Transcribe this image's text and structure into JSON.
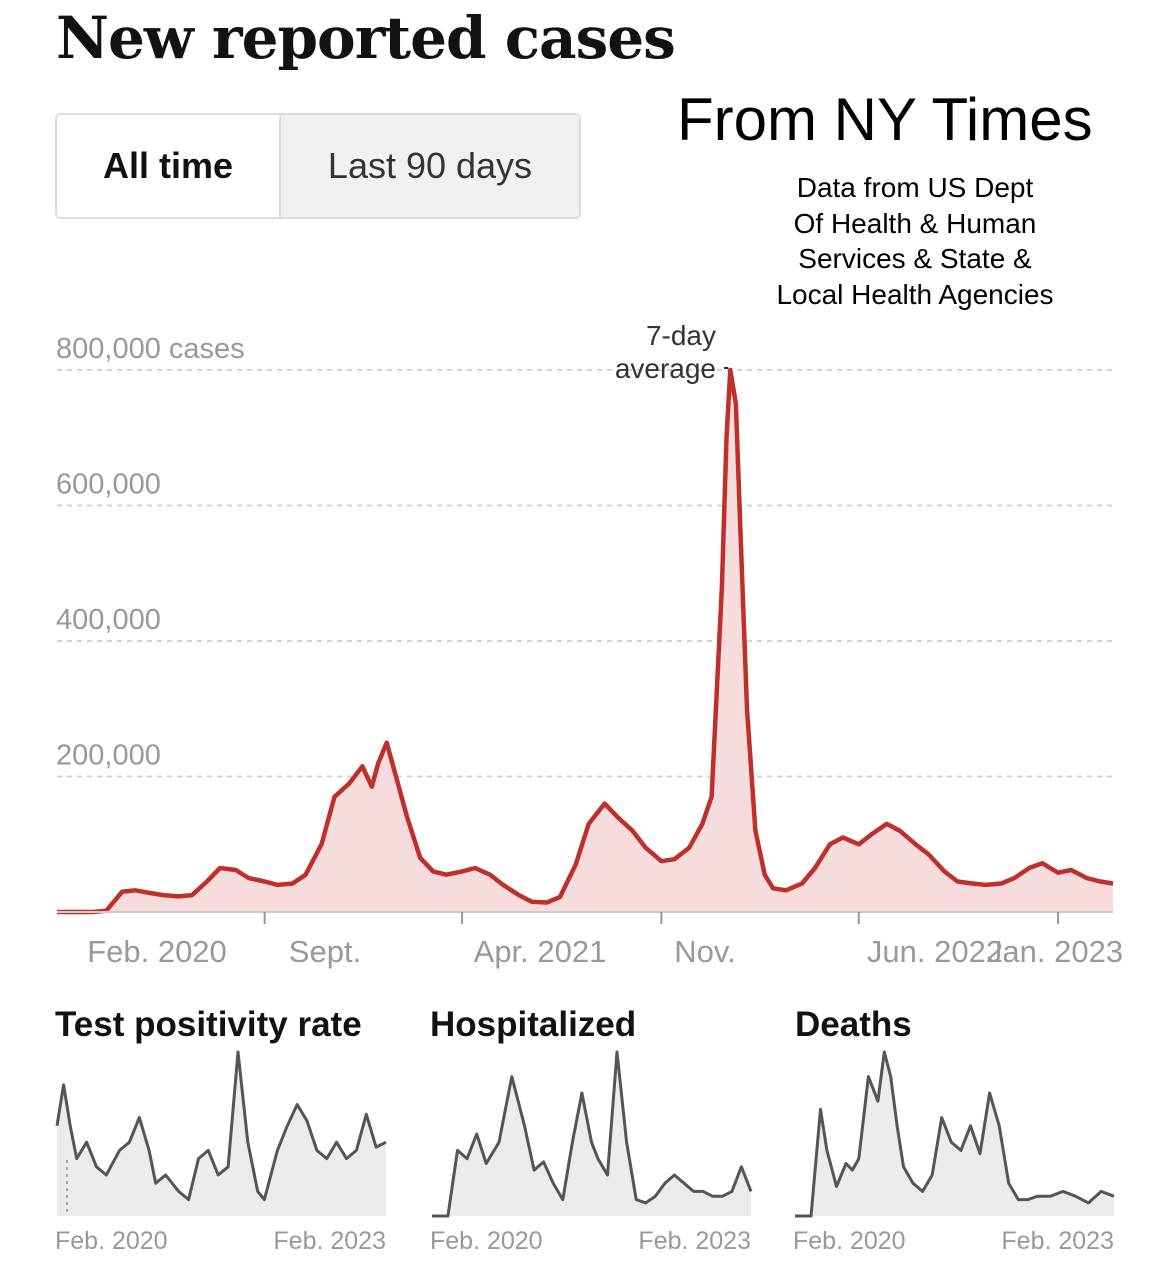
{
  "header": {
    "title": "New reported cases",
    "source_title": "From NY Times",
    "source_note": [
      "Data from US Dept",
      "Of Health & Human",
      "Services & State &",
      "Local Health Agencies"
    ]
  },
  "toggle": {
    "options": [
      {
        "label": "All time",
        "active": true
      },
      {
        "label": "Last 90 days",
        "active": false
      }
    ]
  },
  "colors": {
    "line": "#c0302b",
    "area": "#f6dcdc",
    "small_line": "#555555",
    "small_area": "#ececec",
    "grid": "#d4d4d4",
    "tick_text": "#999999"
  },
  "chart_data": [
    {
      "type": "area",
      "title": "New reported cases",
      "ylabel": "",
      "ylim": [
        0,
        800000
      ],
      "y_ticks": [
        {
          "value": 800000,
          "label": "800,000 cases"
        },
        {
          "value": 600000,
          "label": "600,000"
        },
        {
          "value": 400000,
          "label": "400,000"
        },
        {
          "value": 200000,
          "label": "200,000"
        }
      ],
      "x_ticks": [
        "Feb. 2020",
        "Sept.",
        "Apr. 2021",
        "Nov.",
        "Jun. 2022",
        "Jan. 2023"
      ],
      "grid": true,
      "annotation": {
        "text": [
          "7-day",
          "average"
        ],
        "date": "2022-01-14"
      },
      "series": [
        {
          "name": "",
          "x": [
            "2020-01-22",
            "2020-03-01",
            "2020-03-15",
            "2020-04-01",
            "2020-04-15",
            "2020-05-01",
            "2020-05-15",
            "2020-06-01",
            "2020-06-15",
            "2020-07-01",
            "2020-07-15",
            "2020-08-01",
            "2020-08-15",
            "2020-09-01",
            "2020-09-15",
            "2020-10-01",
            "2020-10-15",
            "2020-11-01",
            "2020-11-15",
            "2020-12-01",
            "2020-12-15",
            "2020-12-25",
            "2021-01-01",
            "2021-01-10",
            "2021-01-20",
            "2021-02-01",
            "2021-02-15",
            "2021-03-01",
            "2021-03-15",
            "2021-04-01",
            "2021-04-15",
            "2021-05-01",
            "2021-05-15",
            "2021-06-01",
            "2021-06-15",
            "2021-07-01",
            "2021-07-15",
            "2021-08-01",
            "2021-08-15",
            "2021-09-01",
            "2021-09-15",
            "2021-10-01",
            "2021-10-15",
            "2021-11-01",
            "2021-11-15",
            "2021-12-01",
            "2021-12-15",
            "2021-12-25",
            "2022-01-05",
            "2022-01-10",
            "2022-01-14",
            "2022-01-20",
            "2022-01-25",
            "2022-02-01",
            "2022-02-10",
            "2022-02-20",
            "2022-03-01",
            "2022-03-15",
            "2022-04-01",
            "2022-04-15",
            "2022-05-01",
            "2022-05-15",
            "2022-06-01",
            "2022-06-15",
            "2022-07-01",
            "2022-07-15",
            "2022-08-01",
            "2022-08-15",
            "2022-09-01",
            "2022-09-15",
            "2022-10-01",
            "2022-10-15",
            "2022-11-01",
            "2022-11-15",
            "2022-12-01",
            "2022-12-15",
            "2023-01-01",
            "2023-01-15",
            "2023-02-01",
            "2023-02-15",
            "2023-03-01"
          ],
          "values": [
            0,
            0,
            2000,
            30000,
            32000,
            28000,
            25000,
            23000,
            25000,
            45000,
            65000,
            62000,
            50000,
            45000,
            40000,
            42000,
            55000,
            100000,
            170000,
            190000,
            215000,
            185000,
            220000,
            250000,
            200000,
            140000,
            80000,
            60000,
            55000,
            60000,
            65000,
            55000,
            40000,
            25000,
            15000,
            14000,
            22000,
            70000,
            130000,
            160000,
            140000,
            120000,
            95000,
            75000,
            78000,
            95000,
            130000,
            170000,
            480000,
            700000,
            800000,
            750000,
            560000,
            300000,
            120000,
            55000,
            35000,
            32000,
            42000,
            65000,
            100000,
            110000,
            100000,
            115000,
            130000,
            120000,
            100000,
            85000,
            60000,
            45000,
            42000,
            40000,
            42000,
            50000,
            65000,
            72000,
            58000,
            62000,
            50000,
            45000,
            42000
          ]
        }
      ]
    },
    {
      "type": "area",
      "title": "Test positivity rate",
      "x_ticks": [
        "Feb. 2020",
        "Feb. 2023"
      ],
      "series": [
        {
          "name": "",
          "x": [
            0.0,
            0.02,
            0.04,
            0.06,
            0.09,
            0.12,
            0.15,
            0.19,
            0.22,
            0.25,
            0.28,
            0.3,
            0.33,
            0.37,
            0.4,
            0.43,
            0.46,
            0.49,
            0.52,
            0.55,
            0.58,
            0.61,
            0.63,
            0.65,
            0.67,
            0.7,
            0.73,
            0.76,
            0.79,
            0.82,
            0.85,
            0.88,
            0.91,
            0.94,
            0.97,
            1.0
          ],
          "values": [
            0.55,
            0.8,
            0.55,
            0.35,
            0.45,
            0.3,
            0.25,
            0.4,
            0.45,
            0.6,
            0.4,
            0.2,
            0.25,
            0.15,
            0.1,
            0.35,
            0.4,
            0.25,
            0.3,
            1.0,
            0.45,
            0.15,
            0.1,
            0.25,
            0.4,
            0.55,
            0.68,
            0.58,
            0.4,
            0.35,
            0.45,
            0.35,
            0.4,
            0.62,
            0.42,
            0.45
          ]
        }
      ]
    },
    {
      "type": "area",
      "title": "Hospitalized",
      "x_ticks": [
        "Feb. 2020",
        "Feb. 2023"
      ],
      "series": [
        {
          "name": "",
          "x": [
            0.0,
            0.05,
            0.08,
            0.11,
            0.14,
            0.17,
            0.21,
            0.25,
            0.29,
            0.32,
            0.35,
            0.38,
            0.41,
            0.44,
            0.47,
            0.5,
            0.52,
            0.55,
            0.58,
            0.61,
            0.64,
            0.67,
            0.7,
            0.73,
            0.76,
            0.79,
            0.82,
            0.85,
            0.88,
            0.91,
            0.94,
            0.97,
            1.0
          ],
          "values": [
            0.0,
            0.0,
            0.4,
            0.35,
            0.5,
            0.32,
            0.45,
            0.85,
            0.55,
            0.28,
            0.33,
            0.2,
            0.1,
            0.45,
            0.75,
            0.45,
            0.35,
            0.25,
            1.0,
            0.45,
            0.1,
            0.08,
            0.12,
            0.2,
            0.25,
            0.2,
            0.15,
            0.15,
            0.12,
            0.12,
            0.15,
            0.3,
            0.15
          ]
        }
      ]
    },
    {
      "type": "area",
      "title": "Deaths",
      "x_ticks": [
        "Feb. 2020",
        "Feb. 2023"
      ],
      "series": [
        {
          "name": "",
          "x": [
            0.0,
            0.05,
            0.08,
            0.1,
            0.13,
            0.16,
            0.18,
            0.2,
            0.23,
            0.26,
            0.28,
            0.3,
            0.32,
            0.34,
            0.37,
            0.4,
            0.43,
            0.46,
            0.49,
            0.52,
            0.55,
            0.58,
            0.61,
            0.64,
            0.67,
            0.7,
            0.73,
            0.76,
            0.8,
            0.84,
            0.88,
            0.92,
            0.96,
            1.0
          ],
          "values": [
            0.0,
            0.0,
            0.65,
            0.4,
            0.18,
            0.32,
            0.28,
            0.35,
            0.85,
            0.7,
            1.0,
            0.85,
            0.55,
            0.3,
            0.2,
            0.15,
            0.25,
            0.6,
            0.45,
            0.4,
            0.55,
            0.38,
            0.75,
            0.55,
            0.2,
            0.1,
            0.1,
            0.12,
            0.12,
            0.15,
            0.12,
            0.08,
            0.15,
            0.12
          ]
        }
      ]
    }
  ]
}
